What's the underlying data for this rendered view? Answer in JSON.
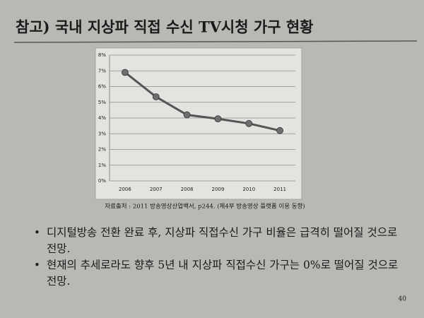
{
  "title": "참고) 국내 지상파 직접 수신 TV시청 가구 현황",
  "chart_data": {
    "type": "line",
    "categories": [
      "2006",
      "2007",
      "2008",
      "2009",
      "2010",
      "2011"
    ],
    "values": [
      6.9,
      5.35,
      4.2,
      3.95,
      3.65,
      3.2
    ],
    "color": "#555555",
    "marker_color": "#6f6f6f",
    "ylim": [
      0,
      8
    ],
    "yticks": [
      {
        "value": 0,
        "label": "0%"
      },
      {
        "value": 1,
        "label": "1%"
      },
      {
        "value": 2,
        "label": "2%"
      },
      {
        "value": 3,
        "label": "3%"
      },
      {
        "value": 4,
        "label": "4%"
      },
      {
        "value": 5,
        "label": "5%"
      },
      {
        "value": 6,
        "label": "6%"
      },
      {
        "value": 7,
        "label": "7%"
      },
      {
        "value": 8,
        "label": "8%"
      }
    ],
    "grid": true
  },
  "source": "자료출처 : 2011 방송영상산업백서, p244. (제4부 방송영상 플랫폼 이용 동향)",
  "bullets": [
    "디지털방송 전환 완료 후, 지상파 직접수신 가구 비율은 급격히 떨어질 것으로 전망.",
    "현재의 추세로라도 향후 5년 내 지상파 직접수신 가구는 0%로 떨어질 것으로 전망."
  ],
  "page_number": "40"
}
